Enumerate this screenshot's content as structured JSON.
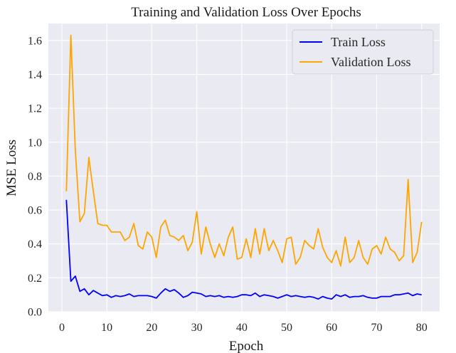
{
  "chart_data": {
    "type": "line",
    "title": "Training and Validation Loss Over Epochs",
    "xlabel": "Epoch",
    "ylabel": "MSE Loss",
    "xlim": [
      -3,
      84
    ],
    "ylim": [
      0,
      1.7
    ],
    "xticks": [
      "0",
      "10",
      "20",
      "30",
      "40",
      "50",
      "60",
      "70",
      "80"
    ],
    "yticks": [
      "0.0",
      "0.2",
      "0.4",
      "0.6",
      "0.8",
      "1.0",
      "1.2",
      "1.4",
      "1.6"
    ],
    "grid": true,
    "background": "#eaeaf2",
    "legend_position": "top-right",
    "x": [
      1,
      2,
      3,
      4,
      5,
      6,
      7,
      8,
      9,
      10,
      11,
      12,
      13,
      14,
      15,
      16,
      17,
      18,
      19,
      20,
      21,
      22,
      23,
      24,
      25,
      26,
      27,
      28,
      29,
      30,
      31,
      32,
      33,
      34,
      35,
      36,
      37,
      38,
      39,
      40,
      41,
      42,
      43,
      44,
      45,
      46,
      47,
      48,
      49,
      50,
      51,
      52,
      53,
      54,
      55,
      56,
      57,
      58,
      59,
      60,
      61,
      62,
      63,
      64,
      65,
      66,
      67,
      68,
      69,
      70,
      71,
      72,
      73,
      74,
      75,
      76,
      77,
      78,
      79,
      80
    ],
    "series": [
      {
        "name": "Train Loss",
        "color": "#0000ff",
        "values": [
          0.66,
          0.18,
          0.21,
          0.12,
          0.135,
          0.1,
          0.125,
          0.11,
          0.095,
          0.1,
          0.085,
          0.095,
          0.09,
          0.095,
          0.105,
          0.09,
          0.095,
          0.095,
          0.095,
          0.09,
          0.08,
          0.11,
          0.135,
          0.12,
          0.13,
          0.11,
          0.085,
          0.095,
          0.115,
          0.11,
          0.105,
          0.09,
          0.095,
          0.09,
          0.095,
          0.085,
          0.09,
          0.085,
          0.09,
          0.1,
          0.1,
          0.095,
          0.11,
          0.09,
          0.1,
          0.095,
          0.09,
          0.08,
          0.09,
          0.1,
          0.09,
          0.095,
          0.09,
          0.085,
          0.09,
          0.085,
          0.075,
          0.09,
          0.08,
          0.075,
          0.1,
          0.09,
          0.1,
          0.085,
          0.09,
          0.09,
          0.095,
          0.085,
          0.08,
          0.08,
          0.09,
          0.09,
          0.09,
          0.1,
          0.1,
          0.105,
          0.11,
          0.095,
          0.105,
          0.1
        ]
      },
      {
        "name": "Validation Loss",
        "color": "#ffa500",
        "values": [
          0.71,
          1.63,
          0.95,
          0.53,
          0.58,
          0.91,
          0.71,
          0.52,
          0.51,
          0.51,
          0.47,
          0.47,
          0.47,
          0.42,
          0.44,
          0.52,
          0.39,
          0.37,
          0.47,
          0.44,
          0.32,
          0.5,
          0.54,
          0.45,
          0.44,
          0.42,
          0.45,
          0.36,
          0.41,
          0.59,
          0.34,
          0.5,
          0.4,
          0.32,
          0.4,
          0.33,
          0.44,
          0.5,
          0.31,
          0.32,
          0.43,
          0.32,
          0.49,
          0.34,
          0.49,
          0.36,
          0.42,
          0.36,
          0.29,
          0.43,
          0.44,
          0.28,
          0.32,
          0.42,
          0.39,
          0.37,
          0.49,
          0.38,
          0.32,
          0.29,
          0.36,
          0.27,
          0.44,
          0.29,
          0.32,
          0.42,
          0.32,
          0.28,
          0.37,
          0.39,
          0.34,
          0.44,
          0.37,
          0.35,
          0.3,
          0.33,
          0.78,
          0.29,
          0.35,
          0.53
        ]
      }
    ]
  }
}
